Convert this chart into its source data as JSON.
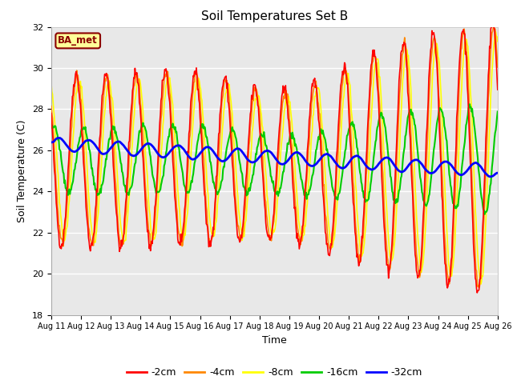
{
  "title": "Soil Temperatures Set B",
  "xlabel": "Time",
  "ylabel": "Soil Temperature (C)",
  "ylim": [
    18,
    32
  ],
  "xlim": [
    0,
    360
  ],
  "site_label": "BA_met",
  "legend": [
    "-2cm",
    "-4cm",
    "-8cm",
    "-16cm",
    "-32cm"
  ],
  "line_colors": [
    "#ff0000",
    "#ff8800",
    "#ffff00",
    "#00cc00",
    "#0000ff"
  ],
  "line_widths": [
    1.2,
    1.2,
    1.2,
    1.5,
    2.0
  ],
  "xtick_labels": [
    "Aug 11",
    "Aug 12",
    "Aug 13",
    "Aug 14",
    "Aug 15",
    "Aug 16",
    "Aug 17",
    "Aug 18",
    "Aug 19",
    "Aug 20",
    "Aug 21",
    "Aug 22",
    "Aug 23",
    "Aug 24",
    "Aug 25",
    "Aug 26"
  ],
  "xtick_positions": [
    0,
    24,
    48,
    72,
    96,
    120,
    144,
    168,
    192,
    216,
    240,
    264,
    288,
    312,
    336,
    360
  ],
  "ytick_positions": [
    18,
    20,
    22,
    24,
    26,
    28,
    30,
    32
  ],
  "bg_color": "#e8e8e8",
  "fig_color": "#ffffff",
  "grid_color": "#ffffff"
}
